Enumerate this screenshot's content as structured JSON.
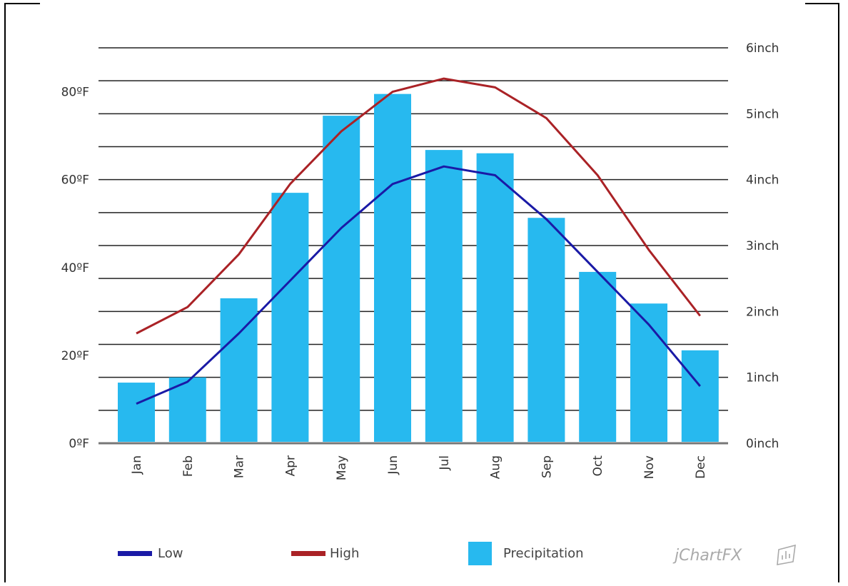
{
  "chart_data": {
    "type": "bar",
    "categories": [
      "Jan",
      "Feb",
      "Mar",
      "Apr",
      "May",
      "Jun",
      "Jul",
      "Aug",
      "Sep",
      "Oct",
      "Nov",
      "Dec"
    ],
    "series": [
      {
        "name": "Precipitation",
        "type": "bar",
        "axis": "right",
        "color": "#27b9ef",
        "values": [
          0.92,
          1.0,
          2.2,
          3.8,
          4.97,
          5.3,
          4.45,
          4.4,
          3.42,
          2.6,
          2.12,
          1.41
        ]
      },
      {
        "name": "Low",
        "type": "line",
        "axis": "left",
        "color": "#1a1aa6",
        "values": [
          9,
          14,
          25,
          37,
          49,
          59,
          63,
          61,
          51,
          39,
          27,
          13
        ]
      },
      {
        "name": "High",
        "type": "line",
        "axis": "left",
        "color": "#aa2226",
        "values": [
          25,
          31,
          43,
          59,
          71,
          80,
          83,
          81,
          74,
          61,
          44,
          29
        ]
      }
    ],
    "y_left": {
      "min": 0,
      "max": 90,
      "ticks": [
        0,
        20,
        40,
        60,
        80
      ],
      "tick_labels": [
        "0ºF",
        "20ºF",
        "40ºF",
        "60ºF",
        "80ºF"
      ]
    },
    "y_right": {
      "min": 0,
      "max": 6,
      "ticks": [
        0,
        1,
        2,
        3,
        4,
        5,
        6
      ],
      "tick_labels": [
        "0inch",
        "1inch",
        "2inch",
        "3inch",
        "4inch",
        "5inch",
        "6inch"
      ]
    },
    "grid": true,
    "legend_position": "bottom"
  },
  "legend": {
    "low_label": "Low",
    "high_label": "High",
    "precip_label": "Precipitation"
  },
  "brand": "jChartFX"
}
